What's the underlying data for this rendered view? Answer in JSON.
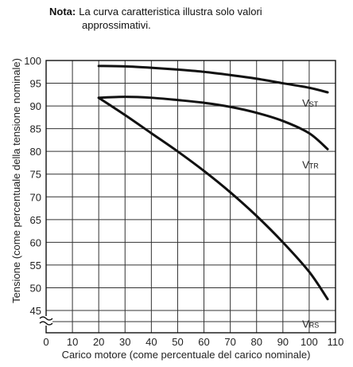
{
  "note": {
    "label": "Nota:",
    "text_line1": "La curva caratteristica illustra solo valori",
    "text_line2": "approssimativi."
  },
  "chart_data": {
    "type": "line",
    "xlabel": "Carico motore (come percentuale del carico nominale)",
    "ylabel": "Tensione (come percentuale della tensione nominale)",
    "xlim": [
      0,
      110
    ],
    "ylim": [
      45,
      100
    ],
    "y_axis_break": true,
    "x_ticks": [
      "0",
      "10",
      "20",
      "30",
      "40",
      "50",
      "60",
      "70",
      "80",
      "90",
      "100",
      "110"
    ],
    "y_ticks": [
      "45",
      "50",
      "55",
      "60",
      "65",
      "70",
      "75",
      "80",
      "85",
      "90",
      "95",
      "100"
    ],
    "grid": true,
    "line_color": "#111111",
    "series": [
      {
        "main": "V",
        "sub": "ST",
        "x": [
          20,
          30,
          40,
          50,
          60,
          70,
          80,
          90,
          100,
          107
        ],
        "y": [
          98.8,
          98.7,
          98.4,
          98.0,
          97.5,
          96.8,
          96.0,
          95.0,
          94.0,
          93.0
        ]
      },
      {
        "main": "V",
        "sub": "TR",
        "x": [
          20,
          30,
          40,
          50,
          60,
          70,
          80,
          90,
          100,
          107
        ],
        "y": [
          91.8,
          92.0,
          91.8,
          91.3,
          90.7,
          89.8,
          88.5,
          86.7,
          84.0,
          80.5
        ]
      },
      {
        "main": "V",
        "sub": "RS",
        "x": [
          20,
          30,
          40,
          50,
          60,
          70,
          80,
          90,
          100,
          107
        ],
        "y": [
          91.8,
          88.0,
          84.0,
          80.0,
          75.7,
          71.0,
          65.8,
          60.0,
          53.5,
          47.5
        ]
      }
    ]
  }
}
